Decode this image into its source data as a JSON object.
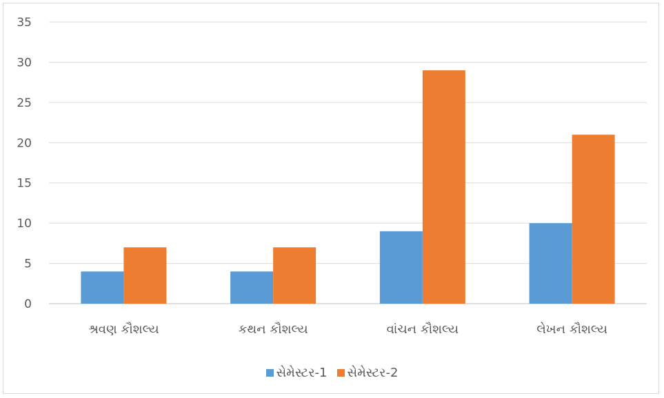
{
  "chart_data": {
    "type": "bar",
    "categories": [
      "શ્રવણ કૌશલ્ય",
      "કથન કૌશલ્ય",
      "વાંચન કૌશલ્ય",
      "લેખન કૌશલ્ય"
    ],
    "series": [
      {
        "name": "સેમેસ્ટર-1",
        "values": [
          4,
          4,
          9,
          10
        ],
        "color": "#5b9bd5"
      },
      {
        "name": "સેમેસ્ટર-2",
        "values": [
          7,
          7,
          29,
          21
        ],
        "color": "#ed7d31"
      }
    ],
    "ylim": [
      0,
      35
    ],
    "yticks": [
      0,
      5,
      10,
      15,
      20,
      25,
      30,
      35
    ],
    "grid": true,
    "legend_position": "bottom"
  }
}
